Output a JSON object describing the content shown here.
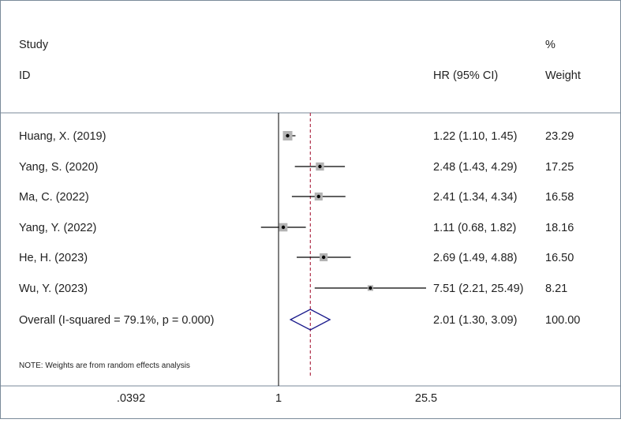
{
  "chart_data": {
    "type": "forest",
    "columns": {
      "study_header": "Study",
      "id_header": "ID",
      "hr_header": "HR (95% CI)",
      "weight_header_top": "%",
      "weight_header_bottom": "Weight"
    },
    "studies": [
      {
        "label": "Huang, X. (2019)",
        "hr": 1.22,
        "ci_low": 1.1,
        "ci_high": 1.45,
        "hr_text": "1.22 (1.10, 1.45)",
        "weight": 23.29,
        "weight_text": "23.29"
      },
      {
        "label": "Yang, S. (2020)",
        "hr": 2.48,
        "ci_low": 1.43,
        "ci_high": 4.29,
        "hr_text": "2.48 (1.43, 4.29)",
        "weight": 17.25,
        "weight_text": "17.25"
      },
      {
        "label": "Ma, C. (2022)",
        "hr": 2.41,
        "ci_low": 1.34,
        "ci_high": 4.34,
        "hr_text": "2.41 (1.34, 4.34)",
        "weight": 16.58,
        "weight_text": "16.58"
      },
      {
        "label": "Yang, Y. (2022)",
        "hr": 1.11,
        "ci_low": 0.68,
        "ci_high": 1.82,
        "hr_text": "1.11 (0.68, 1.82)",
        "weight": 18.16,
        "weight_text": "18.16"
      },
      {
        "label": "He, H. (2023)",
        "hr": 2.69,
        "ci_low": 1.49,
        "ci_high": 4.88,
        "hr_text": "2.69 (1.49, 4.88)",
        "weight": 16.5,
        "weight_text": "16.50"
      },
      {
        "label": "Wu, Y. (2023)",
        "hr": 7.51,
        "ci_low": 2.21,
        "ci_high": 25.49,
        "hr_text": "7.51 (2.21, 25.49)",
        "weight": 8.21,
        "weight_text": "8.21"
      }
    ],
    "overall": {
      "label": "Overall  (I-squared = 79.1%, p = 0.000)",
      "hr": 2.01,
      "ci_low": 1.3,
      "ci_high": 3.09,
      "hr_text": "2.01 (1.30, 3.09)",
      "weight_text": "100.00"
    },
    "note": "NOTE: Weights are from random effects analysis",
    "x_scale": "log",
    "x_ticks": [
      0.0392,
      1,
      25.5
    ],
    "x_tick_labels": [
      ".0392",
      "1",
      "25.5"
    ],
    "xlim": [
      0.0392,
      25.5
    ],
    "null_line": 1,
    "colors": {
      "box": "#b3b3b3",
      "line": "#000000",
      "overall_line": "#b0304a",
      "diamond": "#1a1a8c",
      "frame": "#7a8a99"
    }
  }
}
